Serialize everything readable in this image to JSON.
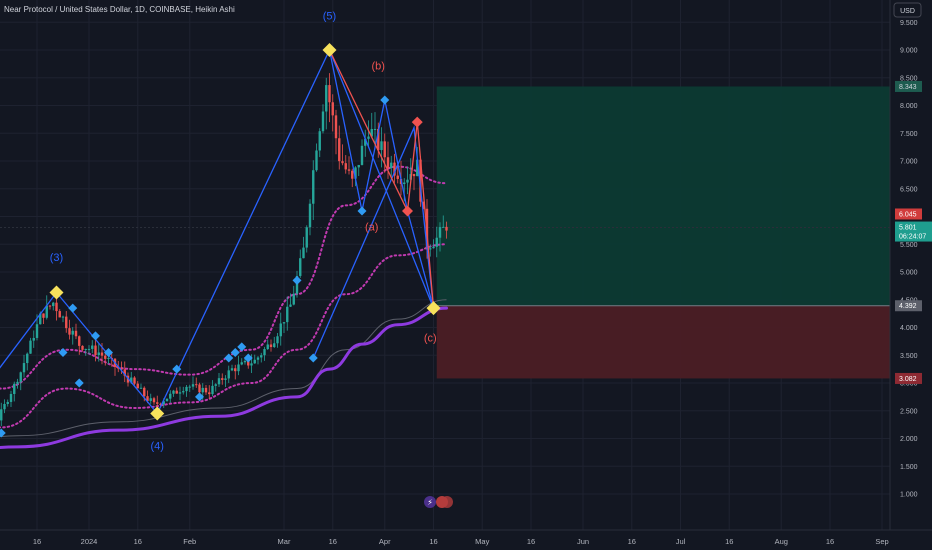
{
  "header": {
    "title": "Near Protocol / United States Dollar, 1D, COINBASE, Heikin Ashi",
    "currency_button": "USD"
  },
  "colors": {
    "background": "#131722",
    "grid": "#1e2230",
    "up": "#26a69a",
    "down": "#ef5350",
    "wave_blue": "#2962ff",
    "wave_red": "#f05350",
    "ema_purple": "#8e3ae0",
    "dotted_magenta": "#c13ab0",
    "profit_zone": "#0c3a33",
    "loss_zone": "#4b1d25",
    "pivot_yellow": "#f7e25c",
    "pivot_blue": "#2f9bf3",
    "pivot_red": "#f05350"
  },
  "chart_data": {
    "type": "candlestick",
    "style": "Heikin Ashi",
    "symbol": "Near Protocol / United States Dollar",
    "interval": "1D",
    "exchange": "COINBASE",
    "currency": "USD",
    "y_axis": {
      "range": [
        0.5,
        9.8
      ],
      "ticks": [
        "1.000",
        "1.500",
        "2.000",
        "2.500",
        "3.000",
        "3.500",
        "4.000",
        "4.500",
        "5.000",
        "5.500",
        "6.000",
        "6.500",
        "7.000",
        "7.500",
        "8.000",
        "8.500",
        "9.000",
        "9.500"
      ]
    },
    "x_axis": {
      "ticks": [
        "16",
        "2024",
        "16",
        "Feb",
        "Mar",
        "16",
        "Apr",
        "16",
        "May",
        "16",
        "Jun",
        "16",
        "Jul",
        "16",
        "Aug",
        "16",
        "Sep"
      ]
    },
    "price_tags": {
      "take_profit": "8.343",
      "last_price": "6.045",
      "current": "5.801",
      "countdown": "06:24:07",
      "entry": "4.392",
      "stop_loss": "3.082"
    },
    "position": {
      "entry": 4.392,
      "take_profit": 8.343,
      "stop_loss": 3.082,
      "from_date": "2024-04-17",
      "to_date": "2024-09-17"
    },
    "wave_labels": [
      {
        "text": "(3)",
        "date": "2023-12-22",
        "price": 5.2,
        "color": "blue"
      },
      {
        "text": "(4)",
        "date": "2024-01-22",
        "price": 1.8,
        "color": "blue"
      },
      {
        "text": "(5)",
        "date": "2024-03-15",
        "price": 9.55,
        "color": "blue"
      },
      {
        "text": "(a)",
        "date": "2024-03-28",
        "price": 5.75,
        "color": "red"
      },
      {
        "text": "(b)",
        "date": "2024-03-30",
        "price": 8.65,
        "color": "red"
      },
      {
        "text": "(c)",
        "date": "2024-04-15",
        "price": 3.75,
        "color": "red"
      }
    ],
    "wave_lines": {
      "blue_main": [
        {
          "date": "2023-11-22",
          "price": 2.3
        },
        {
          "date": "2023-12-22",
          "price": 4.63
        },
        {
          "date": "2024-01-22",
          "price": 2.45
        },
        {
          "date": "2024-03-15",
          "price": 9.0
        },
        {
          "date": "2024-04-16",
          "price": 4.35
        }
      ],
      "blue_inner": [
        {
          "date": "2024-03-15",
          "price": 9.0
        },
        {
          "date": "2024-03-25",
          "price": 6.1
        },
        {
          "date": "2024-04-01",
          "price": 8.1
        },
        {
          "date": "2024-04-08",
          "price": 6.1
        },
        {
          "date": "2024-04-16",
          "price": 4.35
        }
      ],
      "blue_abc": [
        {
          "date": "2024-03-10",
          "price": 3.45
        },
        {
          "date": "2024-04-10",
          "price": 7.6
        },
        {
          "date": "2024-04-16",
          "price": 4.35
        }
      ],
      "red_abc": [
        {
          "date": "2024-03-15",
          "price": 9.0
        },
        {
          "date": "2024-04-08",
          "price": 6.1
        },
        {
          "date": "2024-04-11",
          "price": 7.7
        },
        {
          "date": "2024-04-16",
          "price": 4.35
        }
      ]
    },
    "pivots": [
      {
        "date": "2023-11-24",
        "price": 2.65,
        "kind": "blue"
      },
      {
        "date": "2023-11-27",
        "price": 2.1,
        "kind": "blue"
      },
      {
        "date": "2023-12-01",
        "price": 2.55,
        "kind": "blue"
      },
      {
        "date": "2023-12-05",
        "price": 2.1,
        "kind": "blue"
      },
      {
        "date": "2023-12-22",
        "price": 4.63,
        "kind": "yellow"
      },
      {
        "date": "2023-12-24",
        "price": 3.55,
        "kind": "blue"
      },
      {
        "date": "2023-12-27",
        "price": 4.35,
        "kind": "blue"
      },
      {
        "date": "2023-12-29",
        "price": 3.0,
        "kind": "blue"
      },
      {
        "date": "2024-01-03",
        "price": 3.85,
        "kind": "blue"
      },
      {
        "date": "2024-01-07",
        "price": 3.55,
        "kind": "blue"
      },
      {
        "date": "2024-01-22",
        "price": 2.45,
        "kind": "yellow"
      },
      {
        "date": "2024-01-28",
        "price": 3.25,
        "kind": "blue"
      },
      {
        "date": "2024-02-04",
        "price": 2.75,
        "kind": "blue"
      },
      {
        "date": "2024-02-13",
        "price": 3.45,
        "kind": "blue"
      },
      {
        "date": "2024-02-15",
        "price": 3.55,
        "kind": "blue"
      },
      {
        "date": "2024-02-17",
        "price": 3.65,
        "kind": "blue"
      },
      {
        "date": "2024-02-19",
        "price": 3.45,
        "kind": "blue"
      },
      {
        "date": "2024-03-05",
        "price": 4.85,
        "kind": "blue"
      },
      {
        "date": "2024-03-10",
        "price": 3.45,
        "kind": "blue"
      },
      {
        "date": "2024-03-15",
        "price": 9.0,
        "kind": "yellow"
      },
      {
        "date": "2024-03-25",
        "price": 6.1,
        "kind": "blue"
      },
      {
        "date": "2024-04-01",
        "price": 8.1,
        "kind": "blue"
      },
      {
        "date": "2024-04-08",
        "price": 6.1,
        "kind": "red"
      },
      {
        "date": "2024-04-11",
        "price": 7.7,
        "kind": "red"
      },
      {
        "date": "2024-04-16",
        "price": 4.35,
        "kind": "yellow"
      }
    ],
    "ema_slow": [
      {
        "date": "2023-11-10",
        "price": 1.6
      },
      {
        "date": "2023-12-10",
        "price": 1.85
      },
      {
        "date": "2024-01-10",
        "price": 2.15
      },
      {
        "date": "2024-02-10",
        "price": 2.4
      },
      {
        "date": "2024-03-05",
        "price": 2.75
      },
      {
        "date": "2024-03-15",
        "price": 3.25
      },
      {
        "date": "2024-03-25",
        "price": 3.7
      },
      {
        "date": "2024-04-05",
        "price": 4.05
      },
      {
        "date": "2024-04-20",
        "price": 4.35
      }
    ],
    "sma_long": [
      {
        "date": "2023-11-10",
        "price": 1.75
      },
      {
        "date": "2023-12-10",
        "price": 2.05
      },
      {
        "date": "2024-01-10",
        "price": 2.3
      },
      {
        "date": "2024-02-10",
        "price": 2.55
      },
      {
        "date": "2024-03-05",
        "price": 2.9
      },
      {
        "date": "2024-03-20",
        "price": 3.6
      },
      {
        "date": "2024-04-05",
        "price": 4.15
      },
      {
        "date": "2024-04-20",
        "price": 4.5
      }
    ],
    "band_upper": [
      {
        "date": "2023-11-10",
        "price": 2.4
      },
      {
        "date": "2023-12-05",
        "price": 2.9
      },
      {
        "date": "2023-12-25",
        "price": 3.6
      },
      {
        "date": "2024-01-15",
        "price": 3.25
      },
      {
        "date": "2024-02-01",
        "price": 3.15
      },
      {
        "date": "2024-02-20",
        "price": 3.6
      },
      {
        "date": "2024-03-05",
        "price": 4.6
      },
      {
        "date": "2024-03-20",
        "price": 6.2
      },
      {
        "date": "2024-04-05",
        "price": 6.9
      },
      {
        "date": "2024-04-20",
        "price": 6.6
      }
    ],
    "band_lower": [
      {
        "date": "2023-11-10",
        "price": 1.9
      },
      {
        "date": "2023-12-05",
        "price": 2.2
      },
      {
        "date": "2023-12-25",
        "price": 2.9
      },
      {
        "date": "2024-01-15",
        "price": 2.55
      },
      {
        "date": "2024-02-01",
        "price": 2.65
      },
      {
        "date": "2024-02-20",
        "price": 3.0
      },
      {
        "date": "2024-03-05",
        "price": 3.6
      },
      {
        "date": "2024-03-20",
        "price": 4.6
      },
      {
        "date": "2024-04-05",
        "price": 5.3
      },
      {
        "date": "2024-04-20",
        "price": 5.5
      }
    ],
    "candle_path": [
      {
        "date": "2023-11-10",
        "price": 2.05
      },
      {
        "date": "2023-11-20",
        "price": 2.45
      },
      {
        "date": "2023-11-27",
        "price": 2.15
      },
      {
        "date": "2023-12-05",
        "price": 2.35
      },
      {
        "date": "2023-12-12",
        "price": 3.2
      },
      {
        "date": "2023-12-18",
        "price": 4.2
      },
      {
        "date": "2023-12-22",
        "price": 4.45
      },
      {
        "date": "2023-12-30",
        "price": 3.7
      },
      {
        "date": "2024-01-05",
        "price": 3.55
      },
      {
        "date": "2024-01-12",
        "price": 3.2
      },
      {
        "date": "2024-01-22",
        "price": 2.6
      },
      {
        "date": "2024-02-01",
        "price": 2.95
      },
      {
        "date": "2024-02-08",
        "price": 2.85
      },
      {
        "date": "2024-02-15",
        "price": 3.25
      },
      {
        "date": "2024-02-22",
        "price": 3.4
      },
      {
        "date": "2024-02-28",
        "price": 3.8
      },
      {
        "date": "2024-03-04",
        "price": 4.4
      },
      {
        "date": "2024-03-08",
        "price": 5.4
      },
      {
        "date": "2024-03-12",
        "price": 7.3
      },
      {
        "date": "2024-03-15",
        "price": 8.4
      },
      {
        "date": "2024-03-19",
        "price": 7.1
      },
      {
        "date": "2024-03-23",
        "price": 6.6
      },
      {
        "date": "2024-03-28",
        "price": 7.6
      },
      {
        "date": "2024-04-03",
        "price": 7.0
      },
      {
        "date": "2024-04-08",
        "price": 6.7
      },
      {
        "date": "2024-04-12",
        "price": 6.9
      },
      {
        "date": "2024-04-15",
        "price": 5.5
      },
      {
        "date": "2024-04-18",
        "price": 5.6
      },
      {
        "date": "2024-04-21",
        "price": 5.85
      }
    ]
  }
}
